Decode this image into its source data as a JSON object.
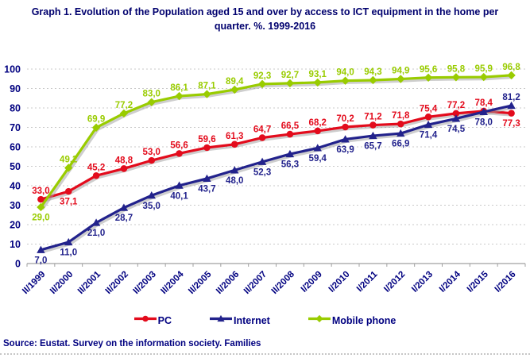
{
  "title": "Graph 1. Evolution of the Population aged 15 and over by access to ICT equipment in the home per quarter. %. 1999-2016",
  "source": "Source: Eustat. Survey on the information society. Families",
  "colors": {
    "pc": "#e30b1c",
    "internet": "#22228c",
    "mobile": "#9c0",
    "axis_text": "#000080",
    "title_text": "#00006e",
    "grid": "#c9c9c9",
    "axis_line": "#a0a0a0",
    "shadow": "#9e9e9e"
  },
  "chart_data": {
    "type": "line",
    "title": "Graph 1. Evolution of the Population aged 15 and over by access to ICT equipment in the home per quarter. %. 1999-2016",
    "xlabel": "",
    "ylabel": "",
    "ylim": [
      0,
      100
    ],
    "ytick_step": 10,
    "grid": "horizontal-dashed",
    "legend_position": "bottom",
    "decimal_separator": ",",
    "categories": [
      "II/1999",
      "II/2000",
      "II/2001",
      "II/2002",
      "II/2003",
      "II/2004",
      "II/2005",
      "II/2006",
      "II/2007",
      "II/2008",
      "I/2009",
      "I/2010",
      "I/2011",
      "I/2012",
      "I/2013",
      "I/2014",
      "I/2015",
      "I/2016"
    ],
    "series": [
      {
        "name": "PC",
        "color": "#e30b1c",
        "marker": "circle",
        "values": [
          33.0,
          37.1,
          45.2,
          48.8,
          53.0,
          56.6,
          59.6,
          61.3,
          64.7,
          66.5,
          68.2,
          70.2,
          71.2,
          71.8,
          75.4,
          77.2,
          78.4,
          77.3
        ],
        "label_pos": [
          "above",
          "below",
          "above",
          "above",
          "above",
          "above",
          "above",
          "above",
          "above",
          "above",
          "above",
          "above",
          "above",
          "above",
          "above",
          "above",
          "above",
          "below"
        ]
      },
      {
        "name": "Internet",
        "color": "#22228c",
        "marker": "triangle",
        "values": [
          7.0,
          11.0,
          21.0,
          28.7,
          35.0,
          40.1,
          43.7,
          48.0,
          52.3,
          56.3,
          59.4,
          63.9,
          65.7,
          66.9,
          71.4,
          74.5,
          78.0,
          81.2
        ],
        "label_pos": [
          "below",
          "below",
          "below",
          "below",
          "below",
          "below",
          "below",
          "below",
          "below",
          "below",
          "below",
          "below",
          "below",
          "below",
          "below",
          "below",
          "below",
          "above"
        ]
      },
      {
        "name": "Mobile phone",
        "color": "#9c0",
        "marker": "diamond",
        "values": [
          29.0,
          49.2,
          69.9,
          77.2,
          83.0,
          86.1,
          87.1,
          89.4,
          92.3,
          92.7,
          93.1,
          94.0,
          94.3,
          94.9,
          95.6,
          95.8,
          95.9,
          96.8
        ],
        "label_pos": [
          "below",
          "above",
          "above",
          "above",
          "above",
          "above",
          "above",
          "above",
          "above",
          "above",
          "above",
          "above",
          "above",
          "above",
          "above",
          "above",
          "above",
          "above"
        ]
      }
    ]
  }
}
